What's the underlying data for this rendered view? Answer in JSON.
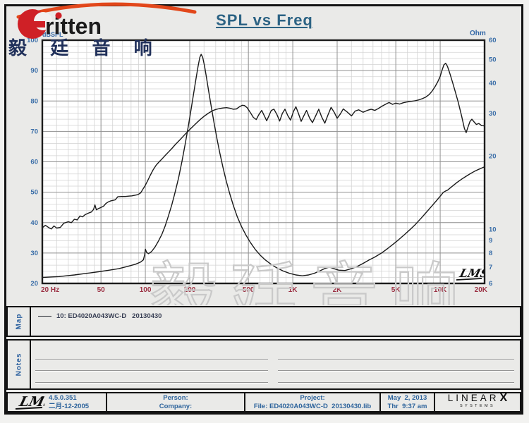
{
  "header": {
    "title": "SPL vs Freq",
    "brand": "ritten",
    "brand_cn": "毅 廷 音 响"
  },
  "chart": {
    "ylabel_left": "dBSPL",
    "ylabel_right": "Ohm",
    "watermark": "毅廷音响",
    "lms_logo": "LMS"
  },
  "chart_data": {
    "type": "line",
    "title": "SPL vs Freq",
    "x_axis": {
      "scale": "log",
      "min": 20,
      "max": 20000,
      "tick_labels": [
        {
          "f": 20,
          "label": "20  Hz",
          "align": "start"
        },
        {
          "f": 50,
          "label": "50",
          "align": "middle"
        },
        {
          "f": 100,
          "label": "100",
          "align": "middle"
        },
        {
          "f": 200,
          "label": "200",
          "align": "middle"
        },
        {
          "f": 500,
          "label": "500",
          "align": "middle"
        },
        {
          "f": 1000,
          "label": "1K",
          "align": "middle"
        },
        {
          "f": 2000,
          "label": "2K",
          "align": "middle"
        },
        {
          "f": 5000,
          "label": "5K",
          "align": "middle"
        },
        {
          "f": 10000,
          "label": "10K",
          "align": "middle"
        },
        {
          "f": 20000,
          "label": "20K",
          "align": "end"
        }
      ]
    },
    "y_left": {
      "label": "dBSPL",
      "scale": "linear",
      "min": 20,
      "max": 100,
      "ticks": [
        100,
        90,
        80,
        70,
        60,
        50,
        40,
        30,
        20
      ],
      "minor_step": 2
    },
    "y_right": {
      "label": "Ohm",
      "scale": "log",
      "min": 6,
      "max": 60,
      "ticks": [
        60,
        50,
        40,
        30,
        20,
        10,
        9,
        8,
        7,
        6
      ]
    },
    "colors": {
      "curve": "#1a1a1a",
      "grid_major": "#929292",
      "grid_minor": "#d3d3d3",
      "tick_blue": "#3a6ea8",
      "freq_red": "#9b3043",
      "plot_bg": "#ffffff",
      "border": "#1c1c1c"
    },
    "series": [
      {
        "name": "SPL (dB, left axis)",
        "axis": "left",
        "x": [
          20,
          21,
          22,
          23,
          24,
          25,
          26.5,
          28,
          30,
          31.5,
          33,
          34.5,
          36,
          37.5,
          39,
          41,
          43,
          44.5,
          45.5,
          46.5,
          48,
          50,
          52,
          54,
          56,
          58,
          60,
          62.5,
          65,
          69,
          73,
          77,
          81,
          85,
          89,
          93,
          96,
          100,
          104,
          108,
          113,
          118,
          124,
          130,
          137,
          144,
          152,
          160,
          170,
          180,
          190,
          200,
          212,
          225,
          238,
          252,
          268,
          285,
          300,
          318,
          336,
          355,
          375,
          395,
          415,
          435,
          455,
          470,
          490,
          515,
          540,
          565,
          590,
          615,
          640,
          665,
          690,
          715,
          745,
          780,
          815,
          850,
          885,
          925,
          965,
          1010,
          1050,
          1095,
          1140,
          1190,
          1240,
          1300,
          1360,
          1430,
          1500,
          1570,
          1650,
          1730,
          1820,
          1910,
          2000,
          2100,
          2200,
          2350,
          2500,
          2650,
          2800,
          3000,
          3200,
          3400,
          3600,
          3800,
          4000,
          4250,
          4500,
          4750,
          5000,
          5300,
          5600,
          6000,
          6400,
          6800,
          7200,
          7600,
          8000,
          8400,
          8800,
          9200,
          9600,
          10000,
          10300,
          10600,
          10900,
          11200,
          11600,
          12100,
          12700,
          13300,
          14000,
          14600,
          15000,
          15400,
          15900,
          16400,
          17000,
          17600,
          18300,
          19100,
          20000
        ],
        "y": [
          38.3,
          39.1,
          38.4,
          37.9,
          38.9,
          38.2,
          38.4,
          39.8,
          40.3,
          40.0,
          41.1,
          40.9,
          42.2,
          41.9,
          42.6,
          43.1,
          43.5,
          44.3,
          45.8,
          44.2,
          44.6,
          45.0,
          45.4,
          46.3,
          46.8,
          47.1,
          47.3,
          47.5,
          48.5,
          48.6,
          48.6,
          48.7,
          48.8,
          49.0,
          49.2,
          49.8,
          50.9,
          52.3,
          53.9,
          55.6,
          57.4,
          58.8,
          60.0,
          61.0,
          62.2,
          63.3,
          64.5,
          65.7,
          67.0,
          68.3,
          69.5,
          70.6,
          71.8,
          73.0,
          74.1,
          75.1,
          76.0,
          76.8,
          77.2,
          77.5,
          77.7,
          77.8,
          77.6,
          77.3,
          77.4,
          78.1,
          78.6,
          78.5,
          77.8,
          76.2,
          74.6,
          73.9,
          75.6,
          76.9,
          75.2,
          73.5,
          75.2,
          76.9,
          77.3,
          75.6,
          73.4,
          75.9,
          77.3,
          75.2,
          73.7,
          76.5,
          78.1,
          75.8,
          73.3,
          75.2,
          76.9,
          74.4,
          72.9,
          75.1,
          77.3,
          74.8,
          72.7,
          75.3,
          77.9,
          76.3,
          74.3,
          75.7,
          77.4,
          76.3,
          75.1,
          76.7,
          77.1,
          76.3,
          76.9,
          77.3,
          76.9,
          77.5,
          78.2,
          78.9,
          79.5,
          78.9,
          79.3,
          79.0,
          79.4,
          79.7,
          79.9,
          80.1,
          80.4,
          80.8,
          81.3,
          82.1,
          83.2,
          84.6,
          86.2,
          88.1,
          90.2,
          91.9,
          92.4,
          91.4,
          89.2,
          86.3,
          82.8,
          79.3,
          74.9,
          71.0,
          69.6,
          71.3,
          73.2,
          74.0,
          73.1,
          72.3,
          72.6,
          71.9,
          71.8
        ]
      },
      {
        "name": "Impedance (Ohm, right axis)",
        "axis": "right",
        "x": [
          20,
          26,
          33,
          40,
          48,
          57,
          66,
          76,
          86,
          93,
          97,
          99,
          100,
          102,
          105,
          110,
          116,
          122,
          129,
          136,
          143,
          151,
          159,
          168,
          177,
          186,
          195,
          204,
          213,
          221,
          228,
          234,
          239,
          245,
          252,
          260,
          270,
          281,
          293,
          306,
          320,
          336,
          354,
          374,
          396,
          420,
          448,
          480,
          515,
          555,
          600,
          650,
          710,
          780,
          860,
          950,
          1050,
          1160,
          1280,
          1400,
          1520,
          1640,
          1770,
          1900,
          2050,
          2260,
          2500,
          2750,
          3000,
          3300,
          3600,
          4000,
          4400,
          4800,
          5200,
          5700,
          6200,
          6800,
          7400,
          8000,
          8700,
          9400,
          10000,
          10500,
          10800,
          11200,
          12000,
          13000,
          14000,
          15000,
          16000,
          17000,
          18000,
          19000,
          20000
        ],
        "y": [
          6.35,
          6.4,
          6.5,
          6.6,
          6.7,
          6.8,
          6.9,
          7.05,
          7.2,
          7.35,
          7.5,
          7.9,
          8.3,
          8.05,
          7.95,
          8.1,
          8.45,
          8.9,
          9.5,
          10.3,
          11.3,
          12.6,
          14.2,
          16.3,
          19.0,
          22.3,
          26.3,
          31.0,
          36.5,
          42.0,
          47.0,
          51.0,
          52.5,
          51.0,
          47.0,
          42.0,
          36.5,
          31.5,
          27.2,
          23.6,
          20.6,
          18.0,
          15.8,
          14.0,
          12.5,
          11.3,
          10.3,
          9.5,
          8.85,
          8.3,
          7.85,
          7.5,
          7.2,
          6.95,
          6.75,
          6.6,
          6.5,
          6.45,
          6.5,
          6.6,
          6.75,
          6.9,
          7.0,
          6.9,
          6.8,
          6.78,
          6.9,
          7.05,
          7.25,
          7.5,
          7.7,
          8.0,
          8.35,
          8.7,
          9.05,
          9.5,
          9.95,
          10.5,
          11.1,
          11.7,
          12.4,
          13.1,
          13.7,
          14.2,
          14.35,
          14.5,
          15.0,
          15.6,
          16.1,
          16.55,
          16.95,
          17.3,
          17.6,
          17.85,
          18.1
        ]
      }
    ]
  },
  "map": {
    "label": "Map",
    "legend": "10: ED4020A043WC-D   20130430"
  },
  "notes": {
    "label": "Notes"
  },
  "footer": {
    "lms_logo": "LMS",
    "version": "4.5.0.351",
    "date_cn": "二月-12-2005",
    "person_label": "Person:",
    "company_label": "Company:",
    "project_label": "Project:",
    "file": "File: ED4020A043WC-D  20130430.lib",
    "date": "May  2, 2013",
    "time": "Thr  9:37 am",
    "brand_line1": "LINEAR",
    "brand_x": "X",
    "brand_line2": "SYSTEMS"
  }
}
